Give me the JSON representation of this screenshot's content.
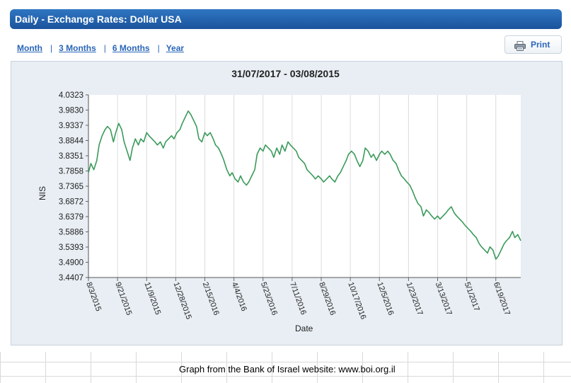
{
  "header": {
    "title": "Daily - Exchange Rates: Dollar USA"
  },
  "periods": [
    "Month",
    "3 Months",
    "6 Months",
    "Year"
  ],
  "print": {
    "label": "Print",
    "icon": "printer-icon"
  },
  "caption": "Graph from the Bank of Israel website: www.boi.org.il",
  "colors": {
    "series": "#3a9a5a",
    "header": "#2464ad",
    "chart_bg": "#e8eef4"
  },
  "chart_data": {
    "type": "line",
    "title": "31/07/2017 - 03/08/2015",
    "xlabel": "Date",
    "ylabel": "NIS",
    "grid": "vertical",
    "ylim": [
      3.4407,
      4.0323
    ],
    "y_ticks": [
      "4.0323",
      "3.9830",
      "3.9337",
      "3.8844",
      "3.8351",
      "3.7858",
      "3.7365",
      "3.6872",
      "3.6379",
      "3.5886",
      "3.5393",
      "3.4900",
      "3.4407"
    ],
    "x_ticks": [
      {
        "label": "8/3/2015",
        "date": "2015-08-03"
      },
      {
        "label": "9/21/2015",
        "date": "2015-09-21"
      },
      {
        "label": "11/9/2015",
        "date": "2015-11-09"
      },
      {
        "label": "12/28/2015",
        "date": "2015-12-28"
      },
      {
        "label": "2/15/2016",
        "date": "2016-02-15"
      },
      {
        "label": "4/4/2016",
        "date": "2016-04-04"
      },
      {
        "label": "5/23/2016",
        "date": "2016-05-23"
      },
      {
        "label": "7/11/2016",
        "date": "2016-07-11"
      },
      {
        "label": "8/29/2016",
        "date": "2016-08-29"
      },
      {
        "label": "10/17/2016",
        "date": "2016-10-17"
      },
      {
        "label": "12/5/2016",
        "date": "2016-12-05"
      },
      {
        "label": "1/23/2017",
        "date": "2017-01-23"
      },
      {
        "label": "3/13/2017",
        "date": "2017-03-13"
      },
      {
        "label": "5/1/2017",
        "date": "2017-05-01"
      },
      {
        "label": "6/19/2017",
        "date": "2017-06-19"
      }
    ],
    "x_range": [
      "2015-08-03",
      "2017-07-31"
    ],
    "series": [
      {
        "points": [
          [
            "2015-08-03",
            3.78
          ],
          [
            "2015-08-07",
            3.81
          ],
          [
            "2015-08-12",
            3.79
          ],
          [
            "2015-08-17",
            3.82
          ],
          [
            "2015-08-21",
            3.87
          ],
          [
            "2015-08-26",
            3.9
          ],
          [
            "2015-08-31",
            3.92
          ],
          [
            "2015-09-04",
            3.93
          ],
          [
            "2015-09-09",
            3.92
          ],
          [
            "2015-09-14",
            3.88
          ],
          [
            "2015-09-18",
            3.91
          ],
          [
            "2015-09-23",
            3.94
          ],
          [
            "2015-09-28",
            3.92
          ],
          [
            "2015-10-02",
            3.88
          ],
          [
            "2015-10-07",
            3.85
          ],
          [
            "2015-10-12",
            3.82
          ],
          [
            "2015-10-16",
            3.86
          ],
          [
            "2015-10-21",
            3.89
          ],
          [
            "2015-10-26",
            3.87
          ],
          [
            "2015-10-30",
            3.89
          ],
          [
            "2015-11-04",
            3.88
          ],
          [
            "2015-11-09",
            3.91
          ],
          [
            "2015-11-13",
            3.9
          ],
          [
            "2015-11-18",
            3.89
          ],
          [
            "2015-11-23",
            3.88
          ],
          [
            "2015-11-27",
            3.87
          ],
          [
            "2015-12-02",
            3.88
          ],
          [
            "2015-12-07",
            3.86
          ],
          [
            "2015-12-11",
            3.88
          ],
          [
            "2015-12-16",
            3.89
          ],
          [
            "2015-12-21",
            3.9
          ],
          [
            "2015-12-25",
            3.89
          ],
          [
            "2015-12-30",
            3.91
          ],
          [
            "2016-01-04",
            3.92
          ],
          [
            "2016-01-08",
            3.94
          ],
          [
            "2016-01-13",
            3.96
          ],
          [
            "2016-01-18",
            3.98
          ],
          [
            "2016-01-22",
            3.97
          ],
          [
            "2016-01-27",
            3.95
          ],
          [
            "2016-02-01",
            3.93
          ],
          [
            "2016-02-05",
            3.89
          ],
          [
            "2016-02-10",
            3.88
          ],
          [
            "2016-02-15",
            3.91
          ],
          [
            "2016-02-19",
            3.9
          ],
          [
            "2016-02-24",
            3.91
          ],
          [
            "2016-02-29",
            3.89
          ],
          [
            "2016-03-04",
            3.87
          ],
          [
            "2016-03-09",
            3.86
          ],
          [
            "2016-03-14",
            3.84
          ],
          [
            "2016-03-18",
            3.82
          ],
          [
            "2016-03-23",
            3.79
          ],
          [
            "2016-03-28",
            3.77
          ],
          [
            "2016-04-01",
            3.78
          ],
          [
            "2016-04-06",
            3.76
          ],
          [
            "2016-04-11",
            3.75
          ],
          [
            "2016-04-15",
            3.77
          ],
          [
            "2016-04-20",
            3.75
          ],
          [
            "2016-04-25",
            3.74
          ],
          [
            "2016-04-29",
            3.75
          ],
          [
            "2016-05-04",
            3.77
          ],
          [
            "2016-05-09",
            3.79
          ],
          [
            "2016-05-13",
            3.84
          ],
          [
            "2016-05-18",
            3.86
          ],
          [
            "2016-05-23",
            3.85
          ],
          [
            "2016-05-27",
            3.87
          ],
          [
            "2016-06-01",
            3.86
          ],
          [
            "2016-06-06",
            3.85
          ],
          [
            "2016-06-10",
            3.83
          ],
          [
            "2016-06-15",
            3.86
          ],
          [
            "2016-06-20",
            3.84
          ],
          [
            "2016-06-24",
            3.87
          ],
          [
            "2016-06-29",
            3.85
          ],
          [
            "2016-07-04",
            3.88
          ],
          [
            "2016-07-08",
            3.87
          ],
          [
            "2016-07-13",
            3.86
          ],
          [
            "2016-07-18",
            3.85
          ],
          [
            "2016-07-22",
            3.83
          ],
          [
            "2016-07-27",
            3.82
          ],
          [
            "2016-08-01",
            3.81
          ],
          [
            "2016-08-05",
            3.79
          ],
          [
            "2016-08-10",
            3.78
          ],
          [
            "2016-08-15",
            3.77
          ],
          [
            "2016-08-19",
            3.76
          ],
          [
            "2016-08-24",
            3.77
          ],
          [
            "2016-08-29",
            3.76
          ],
          [
            "2016-09-02",
            3.75
          ],
          [
            "2016-09-07",
            3.76
          ],
          [
            "2016-09-12",
            3.77
          ],
          [
            "2016-09-16",
            3.76
          ],
          [
            "2016-09-21",
            3.75
          ],
          [
            "2016-09-26",
            3.77
          ],
          [
            "2016-09-30",
            3.78
          ],
          [
            "2016-10-05",
            3.8
          ],
          [
            "2016-10-10",
            3.82
          ],
          [
            "2016-10-14",
            3.84
          ],
          [
            "2016-10-19",
            3.85
          ],
          [
            "2016-10-24",
            3.84
          ],
          [
            "2016-10-28",
            3.82
          ],
          [
            "2016-11-02",
            3.8
          ],
          [
            "2016-11-07",
            3.82
          ],
          [
            "2016-11-11",
            3.86
          ],
          [
            "2016-11-16",
            3.85
          ],
          [
            "2016-11-21",
            3.83
          ],
          [
            "2016-11-25",
            3.84
          ],
          [
            "2016-11-30",
            3.82
          ],
          [
            "2016-12-05",
            3.84
          ],
          [
            "2016-12-09",
            3.85
          ],
          [
            "2016-12-14",
            3.84
          ],
          [
            "2016-12-19",
            3.85
          ],
          [
            "2016-12-23",
            3.84
          ],
          [
            "2016-12-28",
            3.82
          ],
          [
            "2017-01-02",
            3.81
          ],
          [
            "2017-01-06",
            3.79
          ],
          [
            "2017-01-11",
            3.77
          ],
          [
            "2017-01-16",
            3.76
          ],
          [
            "2017-01-20",
            3.75
          ],
          [
            "2017-01-25",
            3.74
          ],
          [
            "2017-01-30",
            3.72
          ],
          [
            "2017-02-03",
            3.7
          ],
          [
            "2017-02-08",
            3.68
          ],
          [
            "2017-02-13",
            3.67
          ],
          [
            "2017-02-17",
            3.64
          ],
          [
            "2017-02-22",
            3.66
          ],
          [
            "2017-02-27",
            3.65
          ],
          [
            "2017-03-03",
            3.64
          ],
          [
            "2017-03-08",
            3.63
          ],
          [
            "2017-03-13",
            3.64
          ],
          [
            "2017-03-17",
            3.63
          ],
          [
            "2017-03-22",
            3.64
          ],
          [
            "2017-03-27",
            3.65
          ],
          [
            "2017-03-31",
            3.66
          ],
          [
            "2017-04-05",
            3.67
          ],
          [
            "2017-04-10",
            3.65
          ],
          [
            "2017-04-14",
            3.64
          ],
          [
            "2017-04-19",
            3.63
          ],
          [
            "2017-04-24",
            3.62
          ],
          [
            "2017-04-28",
            3.61
          ],
          [
            "2017-05-03",
            3.6
          ],
          [
            "2017-05-08",
            3.59
          ],
          [
            "2017-05-12",
            3.58
          ],
          [
            "2017-05-17",
            3.57
          ],
          [
            "2017-05-22",
            3.55
          ],
          [
            "2017-05-26",
            3.54
          ],
          [
            "2017-05-31",
            3.53
          ],
          [
            "2017-06-05",
            3.52
          ],
          [
            "2017-06-09",
            3.54
          ],
          [
            "2017-06-14",
            3.53
          ],
          [
            "2017-06-19",
            3.5
          ],
          [
            "2017-06-23",
            3.51
          ],
          [
            "2017-06-28",
            3.53
          ],
          [
            "2017-07-03",
            3.55
          ],
          [
            "2017-07-07",
            3.56
          ],
          [
            "2017-07-12",
            3.57
          ],
          [
            "2017-07-17",
            3.59
          ],
          [
            "2017-07-21",
            3.57
          ],
          [
            "2017-07-26",
            3.58
          ],
          [
            "2017-07-31",
            3.56
          ]
        ]
      }
    ]
  }
}
